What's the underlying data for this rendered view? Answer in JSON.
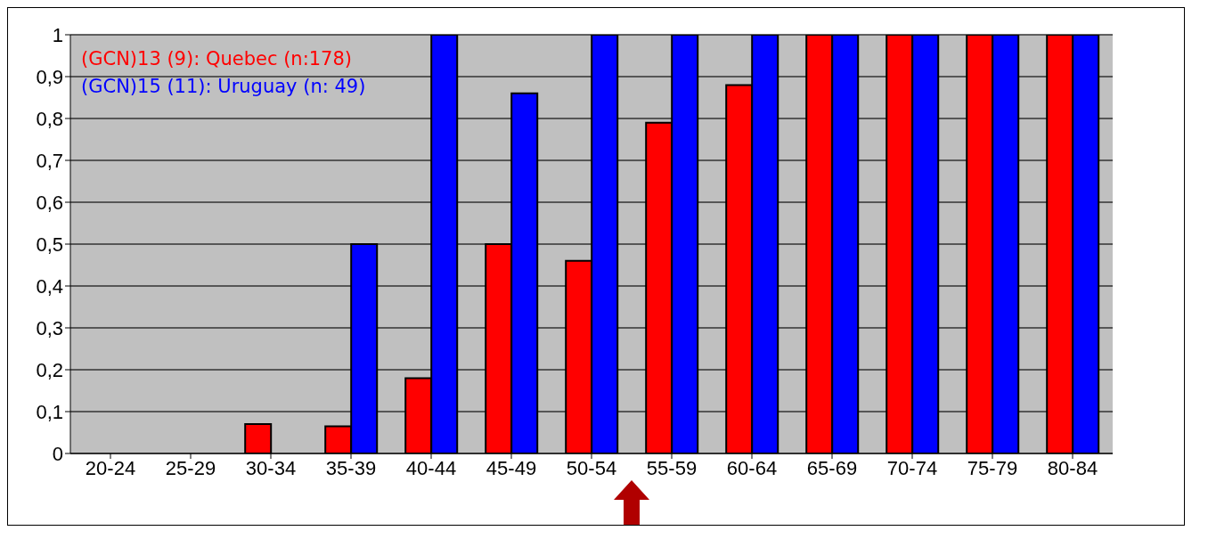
{
  "chart_data": {
    "type": "bar",
    "categories": [
      "20-24",
      "25-29",
      "30-34",
      "35-39",
      "40-44",
      "45-49",
      "50-54",
      "55-59",
      "60-64",
      "65-69",
      "70-74",
      "75-79",
      "80-84"
    ],
    "series": [
      {
        "name": "(GCN)13 (9): Quebec (n:178)",
        "color": "#ff0000",
        "values": [
          0,
          0,
          0.07,
          0.065,
          0.18,
          0.5,
          0.46,
          0.79,
          0.88,
          1,
          1,
          1,
          1
        ]
      },
      {
        "name": "(GCN)15 (11): Uruguay (n: 49)",
        "color": "#0000ff",
        "values": [
          0,
          0,
          0,
          0.5,
          1,
          0.86,
          1,
          1,
          1,
          1,
          1,
          1,
          1
        ]
      }
    ],
    "ylim": [
      0,
      1
    ],
    "yticks": [
      0,
      {
        "value": 0.1,
        "label": "0,1"
      },
      {
        "value": 0.2,
        "label": "0,2"
      },
      {
        "value": 0.3,
        "label": "0,3"
      },
      {
        "value": 0.4,
        "label": "0,4"
      },
      {
        "value": 0.5,
        "label": "0,5"
      },
      {
        "value": 0.6,
        "label": "0,6"
      },
      {
        "value": 0.7,
        "label": "0,7"
      },
      {
        "value": 0.8,
        "label": "0,8"
      },
      {
        "value": 0.9,
        "label": "0,9"
      },
      1
    ],
    "grid": "y",
    "legend": "top left"
  }
}
